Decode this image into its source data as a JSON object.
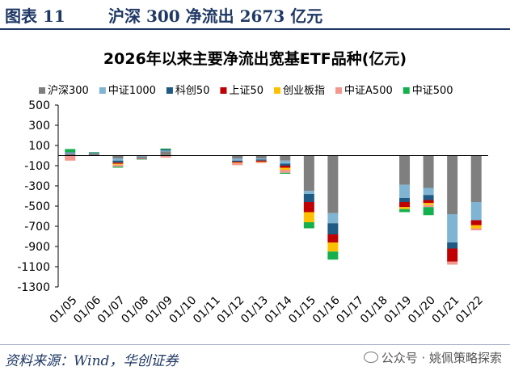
{
  "figure": {
    "number": "图表 11",
    "title": "沪深 300 净流出 2673 亿元"
  },
  "source": "资料来源：Wind，华创证券",
  "watermark": "公众号 · 姚佩策略探索",
  "chart_data": {
    "type": "bar",
    "stacked": true,
    "title": "2026年以来主要净流出宽基ETF品种(亿元)",
    "xlabel": "",
    "ylabel": "",
    "ylim": [
      -1300,
      500
    ],
    "yticks": [
      500,
      300,
      100,
      -100,
      -300,
      -500,
      -700,
      -900,
      -1100,
      -1300
    ],
    "grid": false,
    "legend_position": "top",
    "categories": [
      "01/05",
      "01/06",
      "01/07",
      "01/08",
      "01/09",
      "01/10",
      "01/11",
      "01/12",
      "01/13",
      "01/14",
      "01/15",
      "01/16",
      "01/17",
      "01/18",
      "01/19",
      "01/20",
      "01/21",
      "01/22"
    ],
    "series": [
      {
        "name": "沪深300",
        "color": "#7f7f7f",
        "values": [
          20,
          20,
          -30,
          -10,
          40,
          0,
          0,
          -30,
          -30,
          -50,
          -350,
          -570,
          0,
          0,
          -290,
          -320,
          -580,
          -460
        ]
      },
      {
        "name": "中证1000",
        "color": "#7fb4d3",
        "values": [
          10,
          5,
          -20,
          -10,
          10,
          0,
          0,
          -20,
          -10,
          -30,
          -30,
          -100,
          0,
          0,
          -130,
          -70,
          -280,
          -180
        ]
      },
      {
        "name": "科创50",
        "color": "#1f5a85",
        "values": [
          5,
          5,
          -20,
          -5,
          10,
          0,
          0,
          -10,
          -10,
          -20,
          -80,
          -110,
          0,
          0,
          -40,
          -50,
          -60,
          0
        ]
      },
      {
        "name": "上证50",
        "color": "#c00000",
        "values": [
          0,
          0,
          -10,
          -5,
          0,
          0,
          0,
          -10,
          -10,
          -20,
          -100,
          -80,
          0,
          0,
          -50,
          -30,
          -130,
          -50
        ]
      },
      {
        "name": "创业板指",
        "color": "#ffc000",
        "values": [
          0,
          0,
          -10,
          0,
          0,
          0,
          0,
          -5,
          -5,
          -20,
          -100,
          -90,
          0,
          0,
          -20,
          -20,
          0,
          -30
        ]
      },
      {
        "name": "中证A500",
        "color": "#f4978e",
        "values": [
          -50,
          0,
          -20,
          -5,
          -20,
          0,
          0,
          -20,
          -10,
          -30,
          0,
          0,
          0,
          0,
          0,
          -20,
          -30,
          -20
        ]
      },
      {
        "name": "中证500",
        "color": "#14b04d",
        "values": [
          30,
          5,
          -10,
          -5,
          10,
          0,
          0,
          0,
          0,
          -10,
          -60,
          -80,
          0,
          0,
          -30,
          -80,
          0,
          0
        ]
      }
    ]
  }
}
